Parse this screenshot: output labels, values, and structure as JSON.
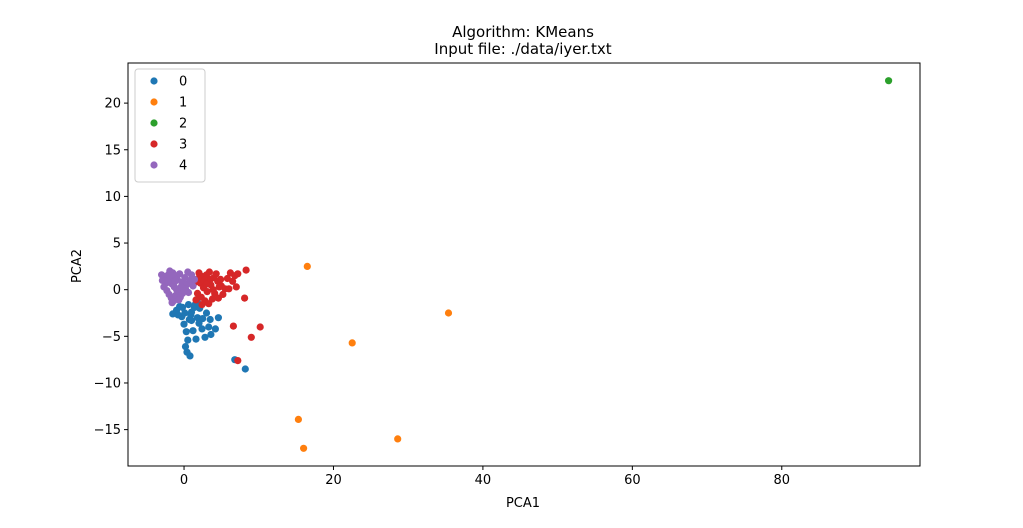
{
  "chart_data": {
    "type": "scatter",
    "title": "Algorithm: KMeans",
    "subtitle": "Input file: ./data/iyer.txt",
    "xlabel": "PCA1",
    "ylabel": "PCA2",
    "xlim": [
      -7.5,
      98.5
    ],
    "ylim": [
      -18.9,
      24.3
    ],
    "xticks": [
      0,
      20,
      40,
      60,
      80
    ],
    "yticks": [
      -15,
      -10,
      -5,
      0,
      5,
      10,
      15,
      20
    ],
    "grid": false,
    "legend_position": "top-left",
    "series": [
      {
        "name": "0",
        "color": "#1f77b4",
        "points": [
          [
            -1.5,
            -2.6
          ],
          [
            -1.0,
            -2.2
          ],
          [
            -0.6,
            -1.8
          ],
          [
            -0.3,
            -2.9
          ],
          [
            0.0,
            -3.7
          ],
          [
            0.3,
            -4.5
          ],
          [
            0.5,
            -5.4
          ],
          [
            0.2,
            -6.1
          ],
          [
            0.4,
            -6.7
          ],
          [
            0.8,
            -7.1
          ],
          [
            1.0,
            -2.4
          ],
          [
            1.4,
            -1.9
          ],
          [
            1.8,
            -3.0
          ],
          [
            2.1,
            -2.0
          ],
          [
            2.4,
            -4.2
          ],
          [
            2.8,
            -5.1
          ],
          [
            3.3,
            -4.0
          ],
          [
            3.6,
            -4.8
          ],
          [
            4.2,
            -4.2
          ],
          [
            3.0,
            -2.5
          ],
          [
            2.5,
            -3.1
          ],
          [
            1.6,
            -5.3
          ],
          [
            1.2,
            -4.4
          ],
          [
            0.7,
            -3.2
          ],
          [
            0.9,
            -2.7
          ],
          [
            1.5,
            -1.6
          ],
          [
            2.0,
            -3.6
          ],
          [
            3.5,
            -3.2
          ],
          [
            4.6,
            -3.0
          ],
          [
            1.8,
            -1.4
          ],
          [
            0.1,
            -2.5
          ],
          [
            -0.8,
            -2.7
          ],
          [
            6.8,
            -7.5
          ],
          [
            8.2,
            -8.5
          ],
          [
            2.2,
            -1.7
          ],
          [
            0.6,
            -1.6
          ],
          [
            1.0,
            -3.3
          ],
          [
            -0.2,
            -1.9
          ]
        ]
      },
      {
        "name": "1",
        "color": "#ff7f0e",
        "points": [
          [
            16.5,
            2.5
          ],
          [
            35.4,
            -2.5
          ],
          [
            22.5,
            -5.7
          ],
          [
            15.3,
            -13.9
          ],
          [
            28.6,
            -16.0
          ],
          [
            16.0,
            -17.0
          ]
        ]
      },
      {
        "name": "2",
        "color": "#2ca02c",
        "points": [
          [
            94.3,
            22.4
          ]
        ]
      },
      {
        "name": "3",
        "color": "#d62728",
        "points": [
          [
            2.0,
            1.8
          ],
          [
            2.5,
            1.4
          ],
          [
            3.0,
            1.6
          ],
          [
            3.5,
            1.1
          ],
          [
            4.0,
            1.3
          ],
          [
            4.5,
            0.9
          ],
          [
            5.0,
            0.4
          ],
          [
            2.2,
            0.7
          ],
          [
            2.6,
            0.2
          ],
          [
            3.1,
            -0.2
          ],
          [
            3.6,
            0.5
          ],
          [
            4.1,
            -0.4
          ],
          [
            4.6,
            -0.9
          ],
          [
            5.2,
            -0.5
          ],
          [
            2.3,
            -0.8
          ],
          [
            2.8,
            -1.2
          ],
          [
            3.3,
            -1.5
          ],
          [
            3.8,
            -1.0
          ],
          [
            1.8,
            -0.4
          ],
          [
            1.5,
            0.8
          ],
          [
            1.9,
            1.2
          ],
          [
            2.4,
            -1.6
          ],
          [
            4.3,
            1.7
          ],
          [
            3.9,
            0.0
          ],
          [
            4.7,
            0.3
          ],
          [
            3.4,
            1.9
          ],
          [
            2.7,
            1.0
          ],
          [
            4.9,
            1.1
          ],
          [
            1.6,
            -1.1
          ],
          [
            3.0,
            0.6
          ],
          [
            5.5,
            0.1
          ],
          [
            6.2,
            1.8
          ],
          [
            6.8,
            1.5
          ],
          [
            7.2,
            1.7
          ],
          [
            8.3,
            2.1
          ],
          [
            6.5,
            0.9
          ],
          [
            7.0,
            0.3
          ],
          [
            8.1,
            -0.9
          ],
          [
            6.6,
            -3.9
          ],
          [
            10.2,
            -4.0
          ],
          [
            9.0,
            -5.1
          ],
          [
            7.2,
            -7.6
          ],
          [
            6.0,
            0.1
          ],
          [
            5.8,
            1.2
          ]
        ]
      },
      {
        "name": "4",
        "color": "#9467bd",
        "points": [
          [
            -2.6,
            1.4
          ],
          [
            -2.9,
            1.0
          ],
          [
            -2.4,
            0.7
          ],
          [
            -2.1,
            1.6
          ],
          [
            -1.8,
            1.2
          ],
          [
            -1.5,
            1.8
          ],
          [
            -1.9,
            2.0
          ],
          [
            -1.2,
            1.5
          ],
          [
            -0.9,
            1.1
          ],
          [
            -0.6,
            1.7
          ],
          [
            -0.3,
            0.8
          ],
          [
            0.1,
            1.3
          ],
          [
            0.4,
            0.6
          ],
          [
            0.8,
            1.0
          ],
          [
            1.2,
            0.4
          ],
          [
            1.0,
            1.6
          ],
          [
            -2.7,
            0.3
          ],
          [
            -2.3,
            -0.1
          ],
          [
            -2.0,
            -0.5
          ],
          [
            -1.7,
            -0.9
          ],
          [
            -1.4,
            -1.2
          ],
          [
            -1.1,
            -0.6
          ],
          [
            -0.8,
            -0.2
          ],
          [
            -0.5,
            -0.8
          ],
          [
            -0.2,
            -0.4
          ],
          [
            0.2,
            0.1
          ],
          [
            0.6,
            -0.3
          ],
          [
            -1.3,
            0.3
          ],
          [
            -1.6,
            0.6
          ],
          [
            -1.0,
            0.0
          ],
          [
            -2.2,
            0.9
          ],
          [
            -0.4,
            0.3
          ],
          [
            0.5,
            1.9
          ],
          [
            -1.9,
            1.5
          ],
          [
            -1.6,
            -1.4
          ],
          [
            -0.7,
            -1.1
          ],
          [
            0.0,
            -0.1
          ],
          [
            1.4,
            1.1
          ],
          [
            -3.0,
            1.6
          ],
          [
            -1.2,
            0.9
          ]
        ]
      }
    ]
  }
}
